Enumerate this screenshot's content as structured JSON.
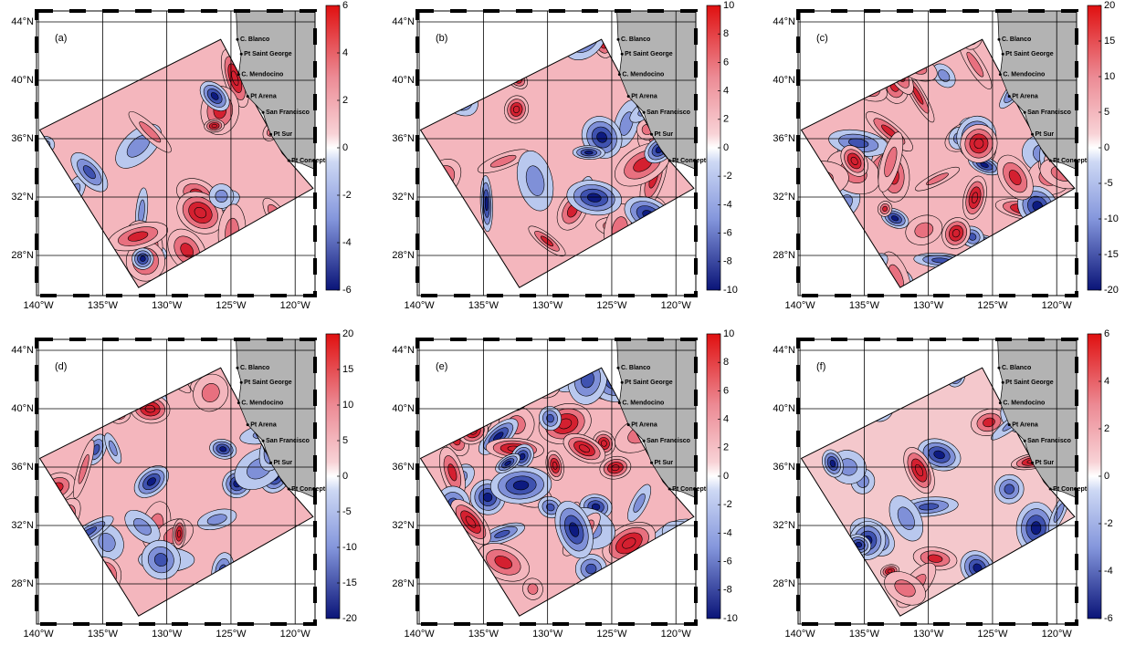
{
  "panels": [
    {
      "label": "(a)",
      "colorbar": {
        "lim": [
          -6,
          6
        ],
        "ticks": [
          6,
          4,
          2,
          0,
          -2,
          -4,
          -6
        ]
      }
    },
    {
      "label": "(b)",
      "colorbar": {
        "lim": [
          -10,
          10
        ],
        "ticks": [
          10,
          8,
          6,
          4,
          2,
          0,
          -2,
          -4,
          -6,
          -8,
          -10
        ]
      }
    },
    {
      "label": "(c)",
      "colorbar": {
        "lim": [
          -20,
          20
        ],
        "ticks": [
          20,
          15,
          10,
          5,
          0,
          -5,
          -10,
          -15,
          -20
        ]
      }
    },
    {
      "label": "(d)",
      "colorbar": {
        "lim": [
          -20,
          20
        ],
        "ticks": [
          20,
          15,
          10,
          5,
          0,
          -5,
          -10,
          -15,
          -20
        ]
      }
    },
    {
      "label": "(e)",
      "colorbar": {
        "lim": [
          -10,
          10
        ],
        "ticks": [
          10,
          8,
          6,
          4,
          2,
          0,
          -2,
          -4,
          -6,
          -8,
          -10
        ]
      }
    },
    {
      "label": "(f)",
      "colorbar": {
        "lim": [
          -6,
          6
        ],
        "ticks": [
          6,
          4,
          2,
          0,
          -2,
          -4,
          -6
        ]
      }
    }
  ],
  "lat_ticks": [
    {
      "value": 44,
      "label": "44°N"
    },
    {
      "value": 40,
      "label": "40°N"
    },
    {
      "value": 36,
      "label": "36°N"
    },
    {
      "value": 32,
      "label": "32°N"
    },
    {
      "value": 28,
      "label": "28°N"
    }
  ],
  "lon_ticks": [
    {
      "value": -140,
      "label": "140°W"
    },
    {
      "value": -135,
      "label": "135°W"
    },
    {
      "value": -130,
      "label": "130°W"
    },
    {
      "value": -125,
      "label": "125°W"
    },
    {
      "value": -120,
      "label": "120°W"
    }
  ],
  "places": [
    {
      "name": "C. Blanco",
      "lon": -124.5,
      "lat": 42.8
    },
    {
      "name": "Pt Saint George",
      "lon": -124.2,
      "lat": 41.8
    },
    {
      "name": "C. Mendocino",
      "lon": -124.4,
      "lat": 40.4
    },
    {
      "name": "Pt Arena",
      "lon": -123.7,
      "lat": 38.9
    },
    {
      "name": "San Francisco",
      "lon": -122.5,
      "lat": 37.8
    },
    {
      "name": "Pt Sur",
      "lon": -121.9,
      "lat": 36.3
    },
    {
      "name": "Pt Conception",
      "lon": -120.5,
      "lat": 34.5
    }
  ]
}
